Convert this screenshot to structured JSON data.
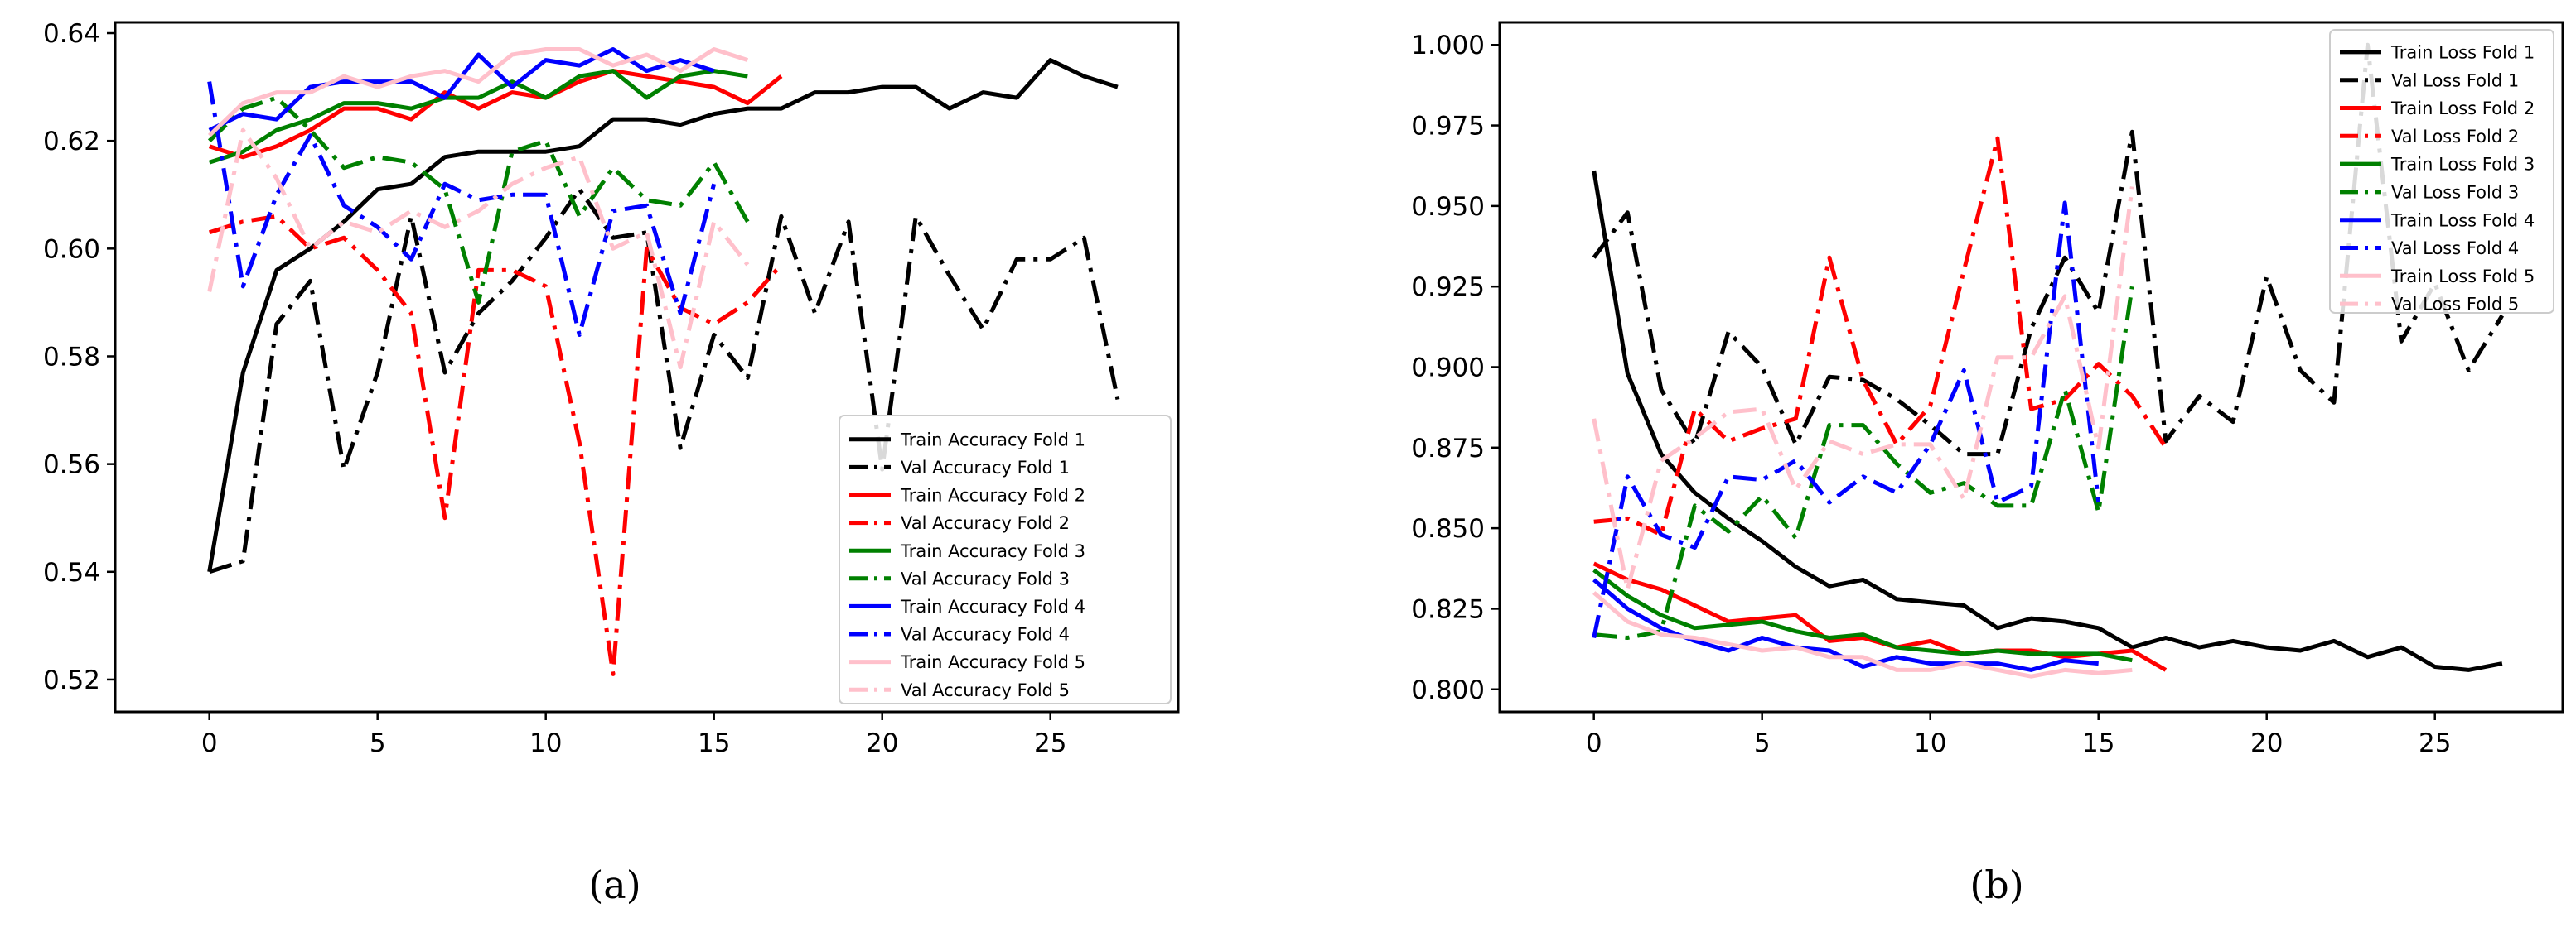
{
  "chart_data": [
    {
      "type": "line",
      "caption": "(a)",
      "title": "",
      "xlabel": "",
      "ylabel": "",
      "xlim": [
        -2.8,
        28.8
      ],
      "ylim": [
        0.514,
        0.642
      ],
      "x_ticks": [
        0,
        5,
        10,
        15,
        20,
        25
      ],
      "y_ticks": [
        0.52,
        0.54,
        0.56,
        0.58,
        0.6,
        0.62,
        0.64
      ],
      "y_tick_labels": [
        "0.52",
        "0.54",
        "0.56",
        "0.58",
        "0.60",
        "0.62",
        "0.64"
      ],
      "legend_position": "lower-right",
      "series": [
        {
          "name": "Train Accuracy Fold 1",
          "color": "#000000",
          "style": "solid",
          "values": [
            0.54,
            0.577,
            0.596,
            0.6,
            0.605,
            0.611,
            0.612,
            0.617,
            0.618,
            0.618,
            0.618,
            0.619,
            0.624,
            0.624,
            0.623,
            0.625,
            0.626,
            0.626,
            0.629,
            0.629,
            0.63,
            0.63,
            0.626,
            0.629,
            0.628,
            0.635,
            0.632,
            0.63
          ]
        },
        {
          "name": "Val Accuracy Fold 1",
          "color": "#000000",
          "style": "dashdot",
          "values": [
            0.54,
            0.542,
            0.586,
            0.594,
            0.559,
            0.577,
            0.606,
            0.577,
            0.588,
            0.594,
            0.602,
            0.611,
            0.602,
            0.603,
            0.563,
            0.584,
            0.576,
            0.606,
            0.588,
            0.605,
            0.559,
            0.606,
            0.595,
            0.585,
            0.598,
            0.598,
            0.602,
            0.572
          ]
        },
        {
          "name": "Train Accuracy Fold 2",
          "color": "#ff0000",
          "style": "solid",
          "values": [
            0.619,
            0.617,
            0.619,
            0.622,
            0.626,
            0.626,
            0.624,
            0.629,
            0.626,
            0.629,
            0.628,
            0.631,
            0.633,
            0.632,
            0.631,
            0.63,
            0.627,
            0.632
          ]
        },
        {
          "name": "Val Accuracy Fold 2",
          "color": "#ff0000",
          "style": "dashdot",
          "values": [
            0.603,
            0.605,
            0.606,
            0.6,
            0.602,
            0.596,
            0.588,
            0.55,
            0.596,
            0.596,
            0.593,
            0.564,
            0.521,
            0.6,
            0.589,
            0.586,
            0.59,
            0.597
          ]
        },
        {
          "name": "Train Accuracy Fold 3",
          "color": "#008000",
          "style": "solid",
          "values": [
            0.616,
            0.618,
            0.622,
            0.624,
            0.627,
            0.627,
            0.626,
            0.628,
            0.628,
            0.631,
            0.628,
            0.632,
            0.633,
            0.628,
            0.632,
            0.633,
            0.632
          ]
        },
        {
          "name": "Val Accuracy Fold 3",
          "color": "#008000",
          "style": "dashdot",
          "values": [
            0.62,
            0.626,
            0.628,
            0.622,
            0.615,
            0.617,
            0.616,
            0.611,
            0.59,
            0.618,
            0.62,
            0.606,
            0.615,
            0.609,
            0.608,
            0.616,
            0.605
          ]
        },
        {
          "name": "Train Accuracy Fold 4",
          "color": "#0000ff",
          "style": "solid",
          "values": [
            0.622,
            0.625,
            0.624,
            0.63,
            0.631,
            0.631,
            0.631,
            0.628,
            0.636,
            0.63,
            0.635,
            0.634,
            0.637,
            0.633,
            0.635,
            0.633
          ]
        },
        {
          "name": "Val Accuracy Fold 4",
          "color": "#0000ff",
          "style": "dashdot",
          "values": [
            0.631,
            0.593,
            0.61,
            0.621,
            0.608,
            0.604,
            0.598,
            0.612,
            0.609,
            0.61,
            0.61,
            0.584,
            0.607,
            0.608,
            0.588,
            0.612
          ]
        },
        {
          "name": "Train Accuracy Fold 5",
          "color": "#ffc0cb",
          "style": "solid",
          "values": [
            0.621,
            0.627,
            0.629,
            0.629,
            0.632,
            0.63,
            0.632,
            0.633,
            0.631,
            0.636,
            0.637,
            0.637,
            0.634,
            0.636,
            0.633,
            0.637,
            0.635
          ]
        },
        {
          "name": "Val Accuracy Fold 5",
          "color": "#ffc0cb",
          "style": "dashdot",
          "values": [
            0.592,
            0.622,
            0.613,
            0.6,
            0.605,
            0.603,
            0.607,
            0.604,
            0.607,
            0.612,
            0.615,
            0.617,
            0.6,
            0.603,
            0.578,
            0.605,
            0.597
          ]
        }
      ]
    },
    {
      "type": "line",
      "caption": "(b)",
      "title": "",
      "xlabel": "",
      "ylabel": "",
      "xlim": [
        -2.8,
        28.8
      ],
      "ylim": [
        0.793,
        1.007
      ],
      "x_ticks": [
        0,
        5,
        10,
        15,
        20,
        25
      ],
      "y_ticks": [
        0.8,
        0.825,
        0.85,
        0.875,
        0.9,
        0.925,
        0.95,
        0.975,
        1.0
      ],
      "y_tick_labels": [
        "0.800",
        "0.825",
        "0.850",
        "0.875",
        "0.900",
        "0.925",
        "0.950",
        "0.975",
        "1.000"
      ],
      "legend_position": "upper-right",
      "series": [
        {
          "name": "Train Loss Fold 1",
          "color": "#000000",
          "style": "solid",
          "values": [
            0.961,
            0.898,
            0.873,
            0.861,
            0.853,
            0.846,
            0.838,
            0.832,
            0.834,
            0.828,
            0.827,
            0.826,
            0.819,
            0.822,
            0.821,
            0.819,
            0.813,
            0.816,
            0.813,
            0.815,
            0.813,
            0.812,
            0.815,
            0.81,
            0.813,
            0.807,
            0.806,
            0.808
          ]
        },
        {
          "name": "Val Loss Fold 1",
          "color": "#000000",
          "style": "dashdot",
          "values": [
            0.934,
            0.948,
            0.893,
            0.876,
            0.911,
            0.9,
            0.876,
            0.897,
            0.896,
            0.89,
            0.882,
            0.873,
            0.873,
            0.912,
            0.934,
            0.917,
            0.973,
            0.877,
            0.891,
            0.883,
            0.928,
            0.899,
            0.889,
            1.0,
            0.908,
            0.926,
            0.899,
            0.916
          ]
        },
        {
          "name": "Train Loss Fold 2",
          "color": "#ff0000",
          "style": "solid",
          "values": [
            0.839,
            0.834,
            0.831,
            0.826,
            0.821,
            0.822,
            0.823,
            0.815,
            0.816,
            0.813,
            0.815,
            0.811,
            0.812,
            0.812,
            0.81,
            0.811,
            0.812,
            0.806
          ]
        },
        {
          "name": "Val Loss Fold 2",
          "color": "#ff0000",
          "style": "dashdot",
          "values": [
            0.852,
            0.853,
            0.848,
            0.887,
            0.877,
            0.881,
            0.884,
            0.934,
            0.896,
            0.876,
            0.888,
            0.93,
            0.971,
            0.887,
            0.89,
            0.901,
            0.891,
            0.875
          ]
        },
        {
          "name": "Train Loss Fold 3",
          "color": "#008000",
          "style": "solid",
          "values": [
            0.837,
            0.829,
            0.823,
            0.819,
            0.82,
            0.821,
            0.818,
            0.816,
            0.817,
            0.813,
            0.812,
            0.811,
            0.812,
            0.811,
            0.811,
            0.811,
            0.809
          ]
        },
        {
          "name": "Val Loss Fold 3",
          "color": "#008000",
          "style": "dashdot",
          "values": [
            0.817,
            0.816,
            0.818,
            0.857,
            0.849,
            0.86,
            0.847,
            0.882,
            0.882,
            0.87,
            0.861,
            0.864,
            0.857,
            0.857,
            0.893,
            0.855,
            0.925
          ]
        },
        {
          "name": "Train Loss Fold 4",
          "color": "#0000ff",
          "style": "solid",
          "values": [
            0.834,
            0.825,
            0.819,
            0.815,
            0.812,
            0.816,
            0.813,
            0.812,
            0.807,
            0.81,
            0.808,
            0.808,
            0.808,
            0.806,
            0.809,
            0.808
          ]
        },
        {
          "name": "Val Loss Fold 4",
          "color": "#0000ff",
          "style": "dashdot",
          "values": [
            0.816,
            0.866,
            0.848,
            0.844,
            0.866,
            0.865,
            0.871,
            0.858,
            0.866,
            0.861,
            0.876,
            0.899,
            0.858,
            0.863,
            0.951,
            0.858
          ]
        },
        {
          "name": "Train Loss Fold 5",
          "color": "#ffc0cb",
          "style": "solid",
          "values": [
            0.83,
            0.821,
            0.817,
            0.816,
            0.814,
            0.812,
            0.813,
            0.81,
            0.81,
            0.806,
            0.806,
            0.808,
            0.806,
            0.804,
            0.806,
            0.805,
            0.806
          ]
        },
        {
          "name": "Val Loss Fold 5",
          "color": "#ffc0cb",
          "style": "dashdot",
          "values": [
            0.884,
            0.831,
            0.871,
            0.878,
            0.886,
            0.887,
            0.862,
            0.877,
            0.873,
            0.876,
            0.876,
            0.859,
            0.903,
            0.903,
            0.922,
            0.875,
            0.956
          ]
        }
      ]
    }
  ]
}
